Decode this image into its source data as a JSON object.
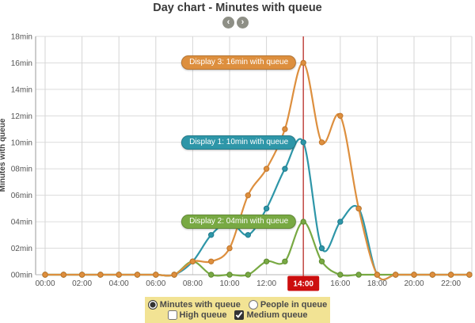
{
  "chart_data": {
    "type": "line",
    "title": "Day chart - Minutes with queue",
    "ylabel": "Minutes with queue",
    "ylim": [
      0,
      18
    ],
    "grid": true,
    "y_ticks": [
      "00min",
      "02min",
      "04min",
      "06min",
      "08min",
      "10min",
      "12min",
      "14min",
      "16min",
      "18min"
    ],
    "x_ticks": [
      {
        "hour": 0,
        "label": "00:00"
      },
      {
        "hour": 2,
        "label": "02:00"
      },
      {
        "hour": 4,
        "label": "04:00"
      },
      {
        "hour": 6,
        "label": "06:00"
      },
      {
        "hour": 8,
        "label": "08:00"
      },
      {
        "hour": 10,
        "label": "10:00"
      },
      {
        "hour": 12,
        "label": "12:00"
      },
      {
        "hour": 14,
        "label": "14:00"
      },
      {
        "hour": 16,
        "label": "16:00"
      },
      {
        "hour": 18,
        "label": "18:00"
      },
      {
        "hour": 20,
        "label": "20:00"
      },
      {
        "hour": 22,
        "label": "22:00"
      }
    ],
    "series": [
      {
        "name": "Display 1",
        "color": "#2e96a8",
        "dot_color": "#1f7a8c",
        "values": [
          0,
          0,
          0,
          0,
          0,
          0,
          0,
          0,
          1,
          3,
          4,
          3,
          5,
          8,
          10,
          2,
          4,
          5,
          0,
          0,
          0,
          0,
          0,
          0
        ]
      },
      {
        "name": "Display 2",
        "color": "#78a943",
        "dot_color": "#5f8a31",
        "values": [
          0,
          0,
          0,
          0,
          0,
          0,
          0,
          0,
          1,
          0,
          0,
          0,
          1,
          1,
          4,
          1,
          0,
          0,
          0,
          0,
          0,
          0,
          0,
          0
        ]
      },
      {
        "name": "Display 3",
        "color": "#dd8f3e",
        "dot_color": "#c2752a",
        "values": [
          0,
          0,
          0,
          0,
          0,
          0,
          0,
          0,
          1,
          1,
          2,
          6,
          8,
          11,
          16,
          10,
          12,
          5,
          0,
          0,
          0,
          0,
          0,
          0
        ]
      }
    ],
    "highlight": {
      "hour": 14,
      "label": "14:00",
      "line_color": "#c4524e",
      "box_color": "#cc0e0e",
      "text_color": "#ffffff"
    },
    "tooltips": [
      {
        "series": 2,
        "hour": 14,
        "text": "Display 3: 16min with queue"
      },
      {
        "series": 0,
        "hour": 14,
        "text": "Display 1: 10min with queue"
      },
      {
        "series": 1,
        "hour": 14,
        "text": "Display 2: 04min with queue"
      }
    ]
  },
  "nav": {
    "prev": "‹",
    "next": "›"
  },
  "controls": {
    "panel_color": "#f2e394",
    "radios": [
      {
        "label": "Minutes with queue",
        "checked": true
      },
      {
        "label": "People in queue",
        "checked": false
      }
    ],
    "checkboxes": [
      {
        "label": "High queue",
        "checked": false
      },
      {
        "label": "Medium queue",
        "checked": true
      }
    ]
  }
}
